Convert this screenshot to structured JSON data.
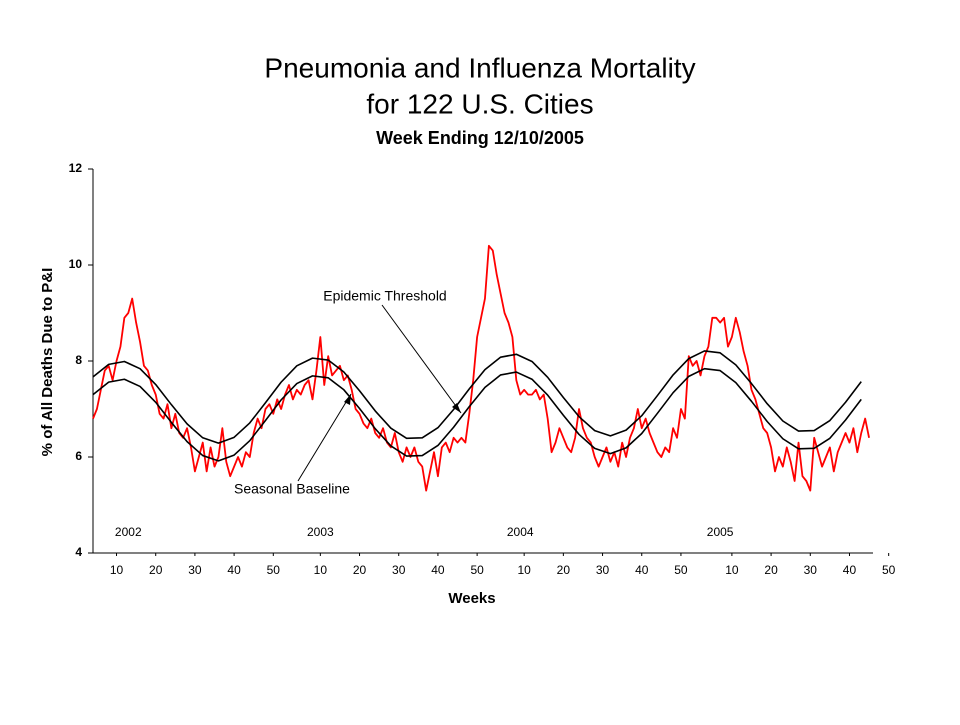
{
  "chart_data": {
    "type": "line",
    "title": [
      "Pneumonia and Influenza Mortality",
      "for 122 U.S. Cities"
    ],
    "subtitle": "Week Ending 12/10/2005",
    "x_label": "Weeks",
    "y_label": "% of All Deaths Due to P&I",
    "xlim": [
      4,
      203
    ],
    "ylim": [
      4,
      12
    ],
    "yticks": [
      4,
      6,
      8,
      10,
      12
    ],
    "xticks": [
      {
        "value": 10,
        "label": "10"
      },
      {
        "value": 20,
        "label": "20"
      },
      {
        "value": 30,
        "label": "30"
      },
      {
        "value": 40,
        "label": "40"
      },
      {
        "value": 50,
        "label": "50"
      },
      {
        "value": 62,
        "label": "10"
      },
      {
        "value": 72,
        "label": "20"
      },
      {
        "value": 82,
        "label": "30"
      },
      {
        "value": 92,
        "label": "40"
      },
      {
        "value": 102,
        "label": "50"
      },
      {
        "value": 114,
        "label": "10"
      },
      {
        "value": 124,
        "label": "20"
      },
      {
        "value": 134,
        "label": "30"
      },
      {
        "value": 144,
        "label": "40"
      },
      {
        "value": 154,
        "label": "50"
      },
      {
        "value": 167,
        "label": "10"
      },
      {
        "value": 177,
        "label": "20"
      },
      {
        "value": 187,
        "label": "30"
      },
      {
        "value": 197,
        "label": "40"
      },
      {
        "value": 207,
        "label": "50"
      }
    ],
    "year_labels": [
      {
        "label": "2002",
        "x": 13
      },
      {
        "label": "2003",
        "x": 62
      },
      {
        "label": "2004",
        "x": 113
      },
      {
        "label": "2005",
        "x": 164
      }
    ],
    "annotations": [
      "Epidemic Threshold",
      "Seasonal Baseline"
    ],
    "series": [
      {
        "color": "#ff0000",
        "x": [
          4,
          5,
          6,
          7,
          8,
          9,
          10,
          11,
          12,
          13,
          14,
          15,
          16,
          17,
          18,
          19,
          20,
          21,
          22,
          23,
          24,
          25,
          26,
          27,
          28,
          29,
          30,
          31,
          32,
          33,
          34,
          35,
          36,
          37,
          38,
          39,
          40,
          41,
          42,
          43,
          44,
          45,
          46,
          47,
          48,
          49,
          50,
          51,
          52,
          53,
          54,
          55,
          56,
          57,
          58,
          59,
          60,
          61,
          62,
          63,
          64,
          65,
          66,
          67,
          68,
          69,
          70,
          71,
          72,
          73,
          74,
          75,
          76,
          77,
          78,
          79,
          80,
          81,
          82,
          83,
          84,
          85,
          86,
          87,
          88,
          89,
          90,
          91,
          92,
          93,
          94,
          95,
          96,
          97,
          98,
          99,
          100,
          101,
          102,
          103,
          104,
          105,
          106,
          107,
          108,
          109,
          110,
          111,
          112,
          113,
          114,
          115,
          116,
          117,
          118,
          119,
          120,
          121,
          122,
          123,
          124,
          125,
          126,
          127,
          128,
          129,
          130,
          131,
          132,
          133,
          134,
          135,
          136,
          137,
          138,
          139,
          140,
          141,
          142,
          143,
          144,
          145,
          146,
          147,
          148,
          149,
          150,
          151,
          152,
          153,
          154,
          155,
          156,
          157,
          158,
          159,
          160,
          161,
          162,
          163,
          164,
          165,
          166,
          167,
          168,
          169,
          170,
          171,
          172,
          173,
          174,
          175,
          176,
          177,
          178,
          179,
          180,
          181,
          182,
          183,
          184,
          185,
          186,
          187,
          188,
          189,
          190,
          191,
          192,
          193,
          194,
          195,
          196,
          197,
          198,
          199,
          200,
          201,
          202
        ],
        "values": [
          6.8,
          7.0,
          7.4,
          7.8,
          7.9,
          7.6,
          8.0,
          8.3,
          8.9,
          9.0,
          9.3,
          8.8,
          8.4,
          7.9,
          7.8,
          7.5,
          7.3,
          6.9,
          6.8,
          7.1,
          6.6,
          6.9,
          6.5,
          6.4,
          6.6,
          6.2,
          5.7,
          6.0,
          6.3,
          5.7,
          6.2,
          5.8,
          6.0,
          6.6,
          5.9,
          5.6,
          5.8,
          6.0,
          5.8,
          6.1,
          6.0,
          6.5,
          6.8,
          6.6,
          7.0,
          7.1,
          6.9,
          7.2,
          7.0,
          7.3,
          7.5,
          7.2,
          7.4,
          7.3,
          7.5,
          7.6,
          7.2,
          7.8,
          8.5,
          7.5,
          8.1,
          7.7,
          7.8,
          7.9,
          7.6,
          7.7,
          7.4,
          7.0,
          6.9,
          6.7,
          6.6,
          6.8,
          6.5,
          6.4,
          6.6,
          6.3,
          6.2,
          6.5,
          6.1,
          5.9,
          6.2,
          6.0,
          6.2,
          5.9,
          5.8,
          5.3,
          5.7,
          6.1,
          5.6,
          6.2,
          6.3,
          6.1,
          6.4,
          6.3,
          6.4,
          6.3,
          6.9,
          7.6,
          8.5,
          8.9,
          9.3,
          10.4,
          10.3,
          9.8,
          9.4,
          9.0,
          8.8,
          8.5,
          7.6,
          7.3,
          7.4,
          7.3,
          7.3,
          7.4,
          7.2,
          7.3,
          6.8,
          6.1,
          6.3,
          6.6,
          6.4,
          6.2,
          6.1,
          6.4,
          7.0,
          6.6,
          6.4,
          6.3,
          6.0,
          5.8,
          6.0,
          6.2,
          5.9,
          6.1,
          5.8,
          6.3,
          6.0,
          6.4,
          6.6,
          7.0,
          6.6,
          6.8,
          6.5,
          6.3,
          6.1,
          6.0,
          6.2,
          6.1,
          6.6,
          6.4,
          7.0,
          6.8,
          8.1,
          7.9,
          8.0,
          7.7,
          8.1,
          8.3,
          8.9,
          8.9,
          8.8,
          8.9,
          8.3,
          8.5,
          8.9,
          8.6,
          8.2,
          7.9,
          7.4,
          7.2,
          6.9,
          6.6,
          6.5,
          6.2,
          5.7,
          6.0,
          5.8,
          6.2,
          5.9,
          5.5,
          6.3,
          5.6,
          5.5,
          5.3,
          6.4,
          6.1,
          5.8,
          6.0,
          6.2,
          5.7,
          6.1,
          6.3,
          6.5,
          6.3,
          6.6,
          6.1,
          6.5,
          6.8,
          6.4
        ]
      },
      {
        "name": "Epidemic Threshold",
        "color": "#000000",
        "x": [
          4,
          8,
          12,
          16,
          20,
          24,
          28,
          32,
          36,
          40,
          44,
          48,
          52,
          56,
          60,
          64,
          68,
          72,
          76,
          80,
          84,
          88,
          92,
          96,
          100,
          104,
          108,
          112,
          116,
          120,
          124,
          128,
          132,
          136,
          140,
          144,
          148,
          152,
          156,
          160,
          164,
          168,
          172,
          176,
          180,
          184,
          188,
          192,
          196,
          200
        ],
        "values": [
          7.67,
          7.93,
          7.99,
          7.84,
          7.51,
          7.09,
          6.69,
          6.4,
          6.29,
          6.41,
          6.71,
          7.13,
          7.56,
          7.9,
          8.06,
          8.02,
          7.77,
          7.38,
          6.96,
          6.6,
          6.39,
          6.4,
          6.61,
          6.99,
          7.42,
          7.82,
          8.08,
          8.14,
          7.99,
          7.66,
          7.24,
          6.84,
          6.55,
          6.44,
          6.56,
          6.86,
          7.28,
          7.71,
          8.05,
          8.21,
          8.17,
          7.92,
          7.53,
          7.11,
          6.75,
          6.54,
          6.55,
          6.76,
          7.14,
          7.57
        ]
      },
      {
        "name": "Seasonal Baseline",
        "color": "#000000",
        "x": [
          4,
          8,
          12,
          16,
          20,
          24,
          28,
          32,
          36,
          40,
          44,
          48,
          52,
          56,
          60,
          64,
          68,
          72,
          76,
          80,
          84,
          88,
          92,
          96,
          100,
          104,
          108,
          112,
          116,
          120,
          124,
          128,
          132,
          136,
          140,
          144,
          148,
          152,
          156,
          160,
          164,
          168,
          172,
          176,
          180,
          184,
          188,
          192,
          196,
          200
        ],
        "values": [
          7.3,
          7.56,
          7.62,
          7.47,
          7.14,
          6.72,
          6.32,
          6.03,
          5.92,
          6.04,
          6.34,
          6.76,
          7.19,
          7.53,
          7.69,
          7.65,
          7.4,
          7.01,
          6.59,
          6.23,
          6.02,
          6.03,
          6.24,
          6.62,
          7.05,
          7.45,
          7.71,
          7.77,
          7.62,
          7.29,
          6.87,
          6.47,
          6.18,
          6.07,
          6.19,
          6.49,
          6.91,
          7.34,
          7.68,
          7.84,
          7.8,
          7.55,
          7.16,
          6.74,
          6.38,
          6.17,
          6.18,
          6.39,
          6.77,
          7.2
        ]
      }
    ]
  }
}
